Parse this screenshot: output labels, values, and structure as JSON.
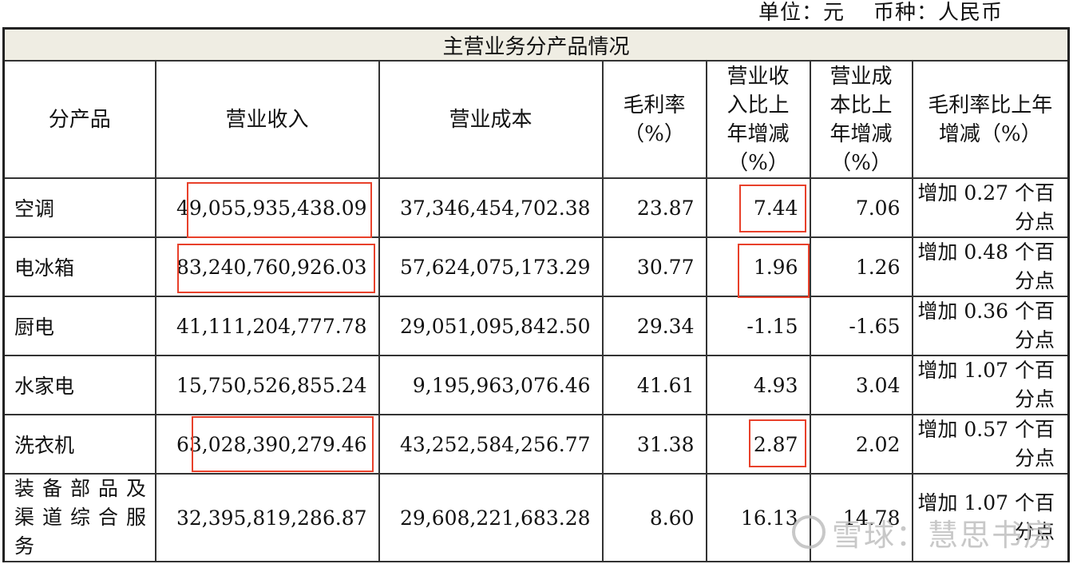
{
  "unit_line": {
    "unit": "单位：元",
    "currency": "币种：人民币"
  },
  "table": {
    "title": "主营业务分产品情况",
    "headers": {
      "product": "分产品",
      "revenue": "营业收入",
      "cost": "营业成本",
      "margin": "毛利率（%）",
      "rev_change": "营业收入比上年增减（%）",
      "cost_change": "营业成本比上年增减（%）",
      "margin_change": "毛利率比上年增减（%）"
    },
    "rows": [
      {
        "product": "空调",
        "revenue": "49,055,935,438.09",
        "cost": "37,346,454,702.38",
        "margin": "23.87",
        "rev_change": "7.44",
        "cost_change": "7.06",
        "margin_change": "增加 0.27 个百分点"
      },
      {
        "product": "电冰箱",
        "revenue": "83,240,760,926.03",
        "cost": "57,624,075,173.29",
        "margin": "30.77",
        "rev_change": "1.96",
        "cost_change": "1.26",
        "margin_change": "增加 0.48 个百分点"
      },
      {
        "product": "厨电",
        "revenue": "41,111,204,777.78",
        "cost": "29,051,095,842.50",
        "margin": "29.34",
        "rev_change": "-1.15",
        "cost_change": "-1.65",
        "margin_change": "增加 0.36 个百分点"
      },
      {
        "product": "水家电",
        "revenue": "15,750,526,855.24",
        "cost": "9,195,963,076.46",
        "margin": "41.61",
        "rev_change": "4.93",
        "cost_change": "3.04",
        "margin_change": "增加 1.07 个百分点"
      },
      {
        "product": "洗衣机",
        "revenue": "63,028,390,279.46",
        "cost": "43,252,584,256.77",
        "margin": "31.38",
        "rev_change": "2.87",
        "cost_change": "2.02",
        "margin_change": "增加 0.57 个百分点"
      },
      {
        "product": "装备部品及渠道综合服务",
        "revenue": "32,395,819,286.87",
        "cost": "29,608,221,683.28",
        "margin": "8.60",
        "rev_change": "16.13",
        "cost_change": "14.78",
        "margin_change": "增加 1.07 个百分点"
      }
    ]
  },
  "highlight_color": "#e8402a",
  "watermark": "雪球：慧思书房"
}
